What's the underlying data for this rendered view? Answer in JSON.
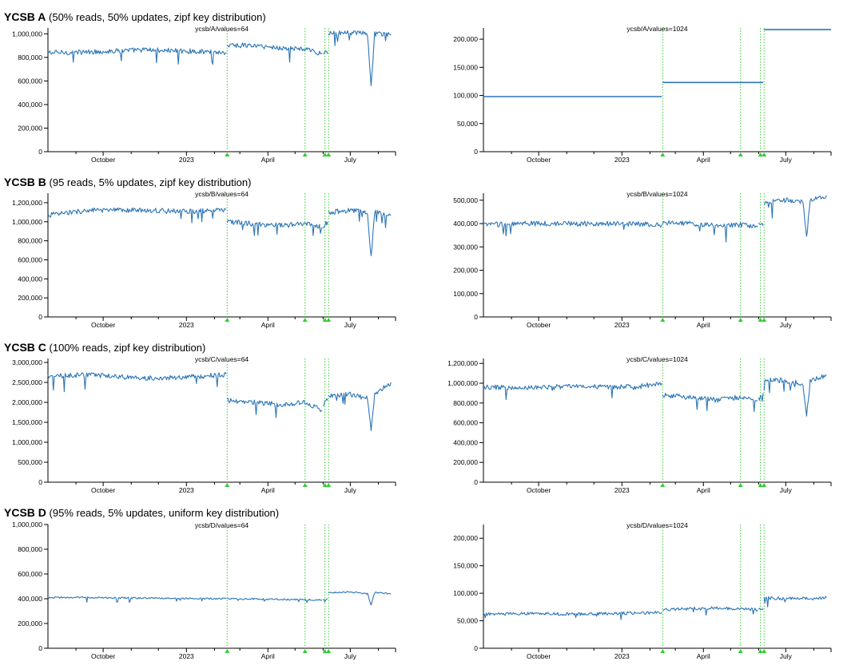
{
  "accent_color": "#2d75b6",
  "marker_color": "#33cc33",
  "sections": [
    {
      "name": "YCSB A",
      "desc": "(50% reads, 50% updates, zipf key distribution)"
    },
    {
      "name": "YCSB B",
      "desc": "(95 reads, 5% updates, zipf key distribution)"
    },
    {
      "name": "YCSB C",
      "desc": "(100% reads, zipf key distribution)"
    },
    {
      "name": "YCSB D",
      "desc": "(95% reads, 5% updates, uniform key distribution)"
    }
  ],
  "chart_data": [
    {
      "type": "line",
      "title": "ycsb/A/values=64",
      "x_range": [
        "2022-08-01",
        "2023-08-20"
      ],
      "x_ticks": [
        "October",
        "2023",
        "April",
        "July"
      ],
      "ylim": [
        0,
        1050000
      ],
      "y_ticks": [
        0,
        200000,
        400000,
        600000,
        800000,
        1000000
      ],
      "markers": [
        "2023-02-15",
        "2023-05-12",
        "2023-06-03",
        "2023-06-07"
      ],
      "segments": [
        {
          "x": [
            "2022-08-01",
            "2022-09-15",
            "2022-11-15",
            "2023-01-15",
            "2023-02-14"
          ],
          "y": [
            840000,
            845000,
            865000,
            850000,
            840000
          ]
        },
        {
          "x": [
            "2023-02-15",
            "2023-03-15",
            "2023-04-15",
            "2023-05-12",
            "2023-05-31"
          ],
          "y": [
            905000,
            900000,
            880000,
            870000,
            830000
          ]
        },
        {
          "x": [
            "2023-06-01",
            "2023-06-06"
          ],
          "y": [
            850000,
            830000
          ]
        },
        {
          "x": [
            "2023-06-07",
            "2023-07-01",
            "2023-07-20",
            "2023-07-24",
            "2023-07-28",
            "2023-08-15"
          ],
          "y": [
            1000000,
            1010000,
            1000000,
            550000,
            1000000,
            990000
          ]
        }
      ]
    },
    {
      "type": "line",
      "title": "ycsb/A/values=1024",
      "x_range": [
        "2022-08-01",
        "2023-08-20"
      ],
      "x_ticks": [
        "October",
        "2023",
        "April",
        "July"
      ],
      "ylim": [
        0,
        220000
      ],
      "y_ticks": [
        0,
        50000,
        100000,
        150000,
        200000
      ],
      "markers": [
        "2023-02-15",
        "2023-05-12",
        "2023-06-03",
        "2023-06-07"
      ],
      "segments": [
        {
          "x": [
            "2022-08-01",
            "2023-02-14"
          ],
          "y": [
            98000,
            98000
          ]
        },
        {
          "x": [
            "2023-02-15",
            "2023-06-06"
          ],
          "y": [
            123000,
            123000
          ]
        },
        {
          "x": [
            "2023-06-07",
            "2023-08-20"
          ],
          "y": [
            217000,
            217000
          ]
        }
      ]
    },
    {
      "type": "line",
      "title": "ycsb/B/values=64",
      "x_range": [
        "2022-08-01",
        "2023-08-20"
      ],
      "x_ticks": [
        "October",
        "2023",
        "April",
        "July"
      ],
      "ylim": [
        0,
        1300000
      ],
      "y_ticks": [
        0,
        200000,
        400000,
        600000,
        800000,
        1000000,
        1200000
      ],
      "markers": [
        "2023-02-15",
        "2023-05-12",
        "2023-06-03",
        "2023-06-07"
      ],
      "segments": [
        {
          "x": [
            "2022-08-01",
            "2022-09-15",
            "2022-11-15",
            "2023-01-15",
            "2023-02-14"
          ],
          "y": [
            1070000,
            1120000,
            1120000,
            1110000,
            1130000
          ]
        },
        {
          "x": [
            "2023-02-15",
            "2023-03-15",
            "2023-04-15",
            "2023-05-12",
            "2023-05-31"
          ],
          "y": [
            1000000,
            980000,
            960000,
            980000,
            940000
          ]
        },
        {
          "x": [
            "2023-06-01",
            "2023-06-06"
          ],
          "y": [
            950000,
            1000000
          ]
        },
        {
          "x": [
            "2023-06-07",
            "2023-07-01",
            "2023-07-20",
            "2023-07-24",
            "2023-07-28",
            "2023-08-15"
          ],
          "y": [
            1100000,
            1120000,
            1100000,
            620000,
            1100000,
            1070000
          ]
        }
      ]
    },
    {
      "type": "line",
      "title": "ycsb/B/values=1024",
      "x_range": [
        "2022-08-01",
        "2023-08-20"
      ],
      "x_ticks": [
        "October",
        "2023",
        "April",
        "July"
      ],
      "ylim": [
        0,
        530000
      ],
      "y_ticks": [
        0,
        100000,
        200000,
        300000,
        400000,
        500000
      ],
      "markers": [
        "2023-02-15",
        "2023-05-12",
        "2023-06-03",
        "2023-06-07"
      ],
      "segments": [
        {
          "x": [
            "2022-08-01",
            "2022-09-15",
            "2022-11-15",
            "2023-01-15",
            "2023-02-14"
          ],
          "y": [
            395000,
            400000,
            400000,
            398000,
            395000
          ]
        },
        {
          "x": [
            "2023-02-15",
            "2023-03-15",
            "2023-04-15",
            "2023-05-12",
            "2023-05-31"
          ],
          "y": [
            405000,
            400000,
            390000,
            395000,
            385000
          ]
        },
        {
          "x": [
            "2023-06-01",
            "2023-06-06"
          ],
          "y": [
            395000,
            390000
          ]
        },
        {
          "x": [
            "2023-06-07",
            "2023-07-01",
            "2023-07-20",
            "2023-07-24",
            "2023-07-28",
            "2023-08-15"
          ],
          "y": [
            490000,
            500000,
            495000,
            340000,
            500000,
            520000
          ]
        }
      ]
    },
    {
      "type": "line",
      "title": "ycsb/C/values=64",
      "x_range": [
        "2022-08-01",
        "2023-08-20"
      ],
      "x_ticks": [
        "October",
        "2023",
        "April",
        "July"
      ],
      "ylim": [
        0,
        3100000
      ],
      "y_ticks": [
        0,
        500000,
        1000000,
        1500000,
        2000000,
        2500000,
        3000000
      ],
      "markers": [
        "2023-02-15",
        "2023-05-12",
        "2023-06-03",
        "2023-06-07"
      ],
      "segments": [
        {
          "x": [
            "2022-08-01",
            "2022-09-15",
            "2022-11-15",
            "2023-01-15",
            "2023-02-14"
          ],
          "y": [
            2650000,
            2700000,
            2600000,
            2650000,
            2700000
          ]
        },
        {
          "x": [
            "2023-02-15",
            "2023-03-15",
            "2023-04-15",
            "2023-05-12",
            "2023-05-31"
          ],
          "y": [
            2050000,
            2000000,
            1950000,
            2000000,
            1800000
          ]
        },
        {
          "x": [
            "2023-06-01",
            "2023-06-06"
          ],
          "y": [
            1950000,
            2050000
          ]
        },
        {
          "x": [
            "2023-06-07",
            "2023-07-01",
            "2023-07-20",
            "2023-07-24",
            "2023-07-28",
            "2023-08-15"
          ],
          "y": [
            2150000,
            2200000,
            2100000,
            1250000,
            2200000,
            2500000
          ]
        }
      ]
    },
    {
      "type": "line",
      "title": "ycsb/C/values=1024",
      "x_range": [
        "2022-08-01",
        "2023-08-20"
      ],
      "x_ticks": [
        "October",
        "2023",
        "April",
        "July"
      ],
      "ylim": [
        0,
        1250000
      ],
      "y_ticks": [
        0,
        200000,
        400000,
        600000,
        800000,
        1000000,
        1200000
      ],
      "markers": [
        "2023-02-15",
        "2023-05-12",
        "2023-06-03",
        "2023-06-07"
      ],
      "segments": [
        {
          "x": [
            "2022-08-01",
            "2022-09-15",
            "2022-11-15",
            "2023-01-15",
            "2023-02-14"
          ],
          "y": [
            960000,
            950000,
            970000,
            960000,
            1000000
          ]
        },
        {
          "x": [
            "2023-02-15",
            "2023-03-15",
            "2023-04-15",
            "2023-05-12",
            "2023-05-31"
          ],
          "y": [
            880000,
            860000,
            830000,
            860000,
            820000
          ]
        },
        {
          "x": [
            "2023-06-01",
            "2023-06-06"
          ],
          "y": [
            840000,
            900000
          ]
        },
        {
          "x": [
            "2023-06-07",
            "2023-07-01",
            "2023-07-20",
            "2023-07-24",
            "2023-07-28",
            "2023-08-15"
          ],
          "y": [
            1050000,
            1020000,
            1000000,
            660000,
            1020000,
            1080000
          ]
        }
      ]
    },
    {
      "type": "line",
      "title": "ycsb/D/values=64",
      "x_range": [
        "2022-08-01",
        "2023-08-20"
      ],
      "x_ticks": [
        "October",
        "2023",
        "April",
        "July"
      ],
      "ylim": [
        0,
        1000000
      ],
      "y_ticks": [
        0,
        200000,
        400000,
        600000,
        800000,
        1000000
      ],
      "markers": [
        "2023-02-15",
        "2023-05-12",
        "2023-06-03",
        "2023-06-07"
      ],
      "segments": [
        {
          "x": [
            "2022-08-01",
            "2022-09-15",
            "2022-11-15",
            "2023-01-15",
            "2023-02-14"
          ],
          "y": [
            410000,
            410000,
            405000,
            402000,
            400000
          ]
        },
        {
          "x": [
            "2023-02-15",
            "2023-03-15",
            "2023-04-15",
            "2023-05-12",
            "2023-05-31"
          ],
          "y": [
            400000,
            398000,
            395000,
            392000,
            390000
          ]
        },
        {
          "x": [
            "2023-06-01",
            "2023-06-06"
          ],
          "y": [
            390000,
            400000
          ]
        },
        {
          "x": [
            "2023-06-07",
            "2023-07-01",
            "2023-07-20",
            "2023-07-24",
            "2023-07-28",
            "2023-08-15"
          ],
          "y": [
            450000,
            455000,
            440000,
            350000,
            450000,
            440000
          ]
        }
      ]
    },
    {
      "type": "line",
      "title": "ycsb/D/values=1024",
      "x_range": [
        "2022-08-01",
        "2023-08-20"
      ],
      "x_ticks": [
        "October",
        "2023",
        "April",
        "July"
      ],
      "ylim": [
        0,
        225000
      ],
      "y_ticks": [
        0,
        50000,
        100000,
        150000,
        200000
      ],
      "markers": [
        "2023-02-15",
        "2023-05-12",
        "2023-06-03",
        "2023-06-07"
      ],
      "segments": [
        {
          "x": [
            "2022-08-01",
            "2022-09-15",
            "2022-11-15",
            "2023-01-15",
            "2023-02-14"
          ],
          "y": [
            62000,
            63000,
            62000,
            64000,
            65000
          ]
        },
        {
          "x": [
            "2023-02-15",
            "2023-03-15",
            "2023-04-15",
            "2023-05-12",
            "2023-05-31"
          ],
          "y": [
            70000,
            72000,
            73000,
            72000,
            70000
          ]
        },
        {
          "x": [
            "2023-06-01",
            "2023-06-06"
          ],
          "y": [
            70000,
            72000
          ]
        },
        {
          "x": [
            "2023-06-07",
            "2023-07-01",
            "2023-07-20",
            "2023-07-28",
            "2023-08-15"
          ],
          "y": [
            92000,
            90000,
            91000,
            90000,
            92000
          ]
        }
      ]
    }
  ]
}
